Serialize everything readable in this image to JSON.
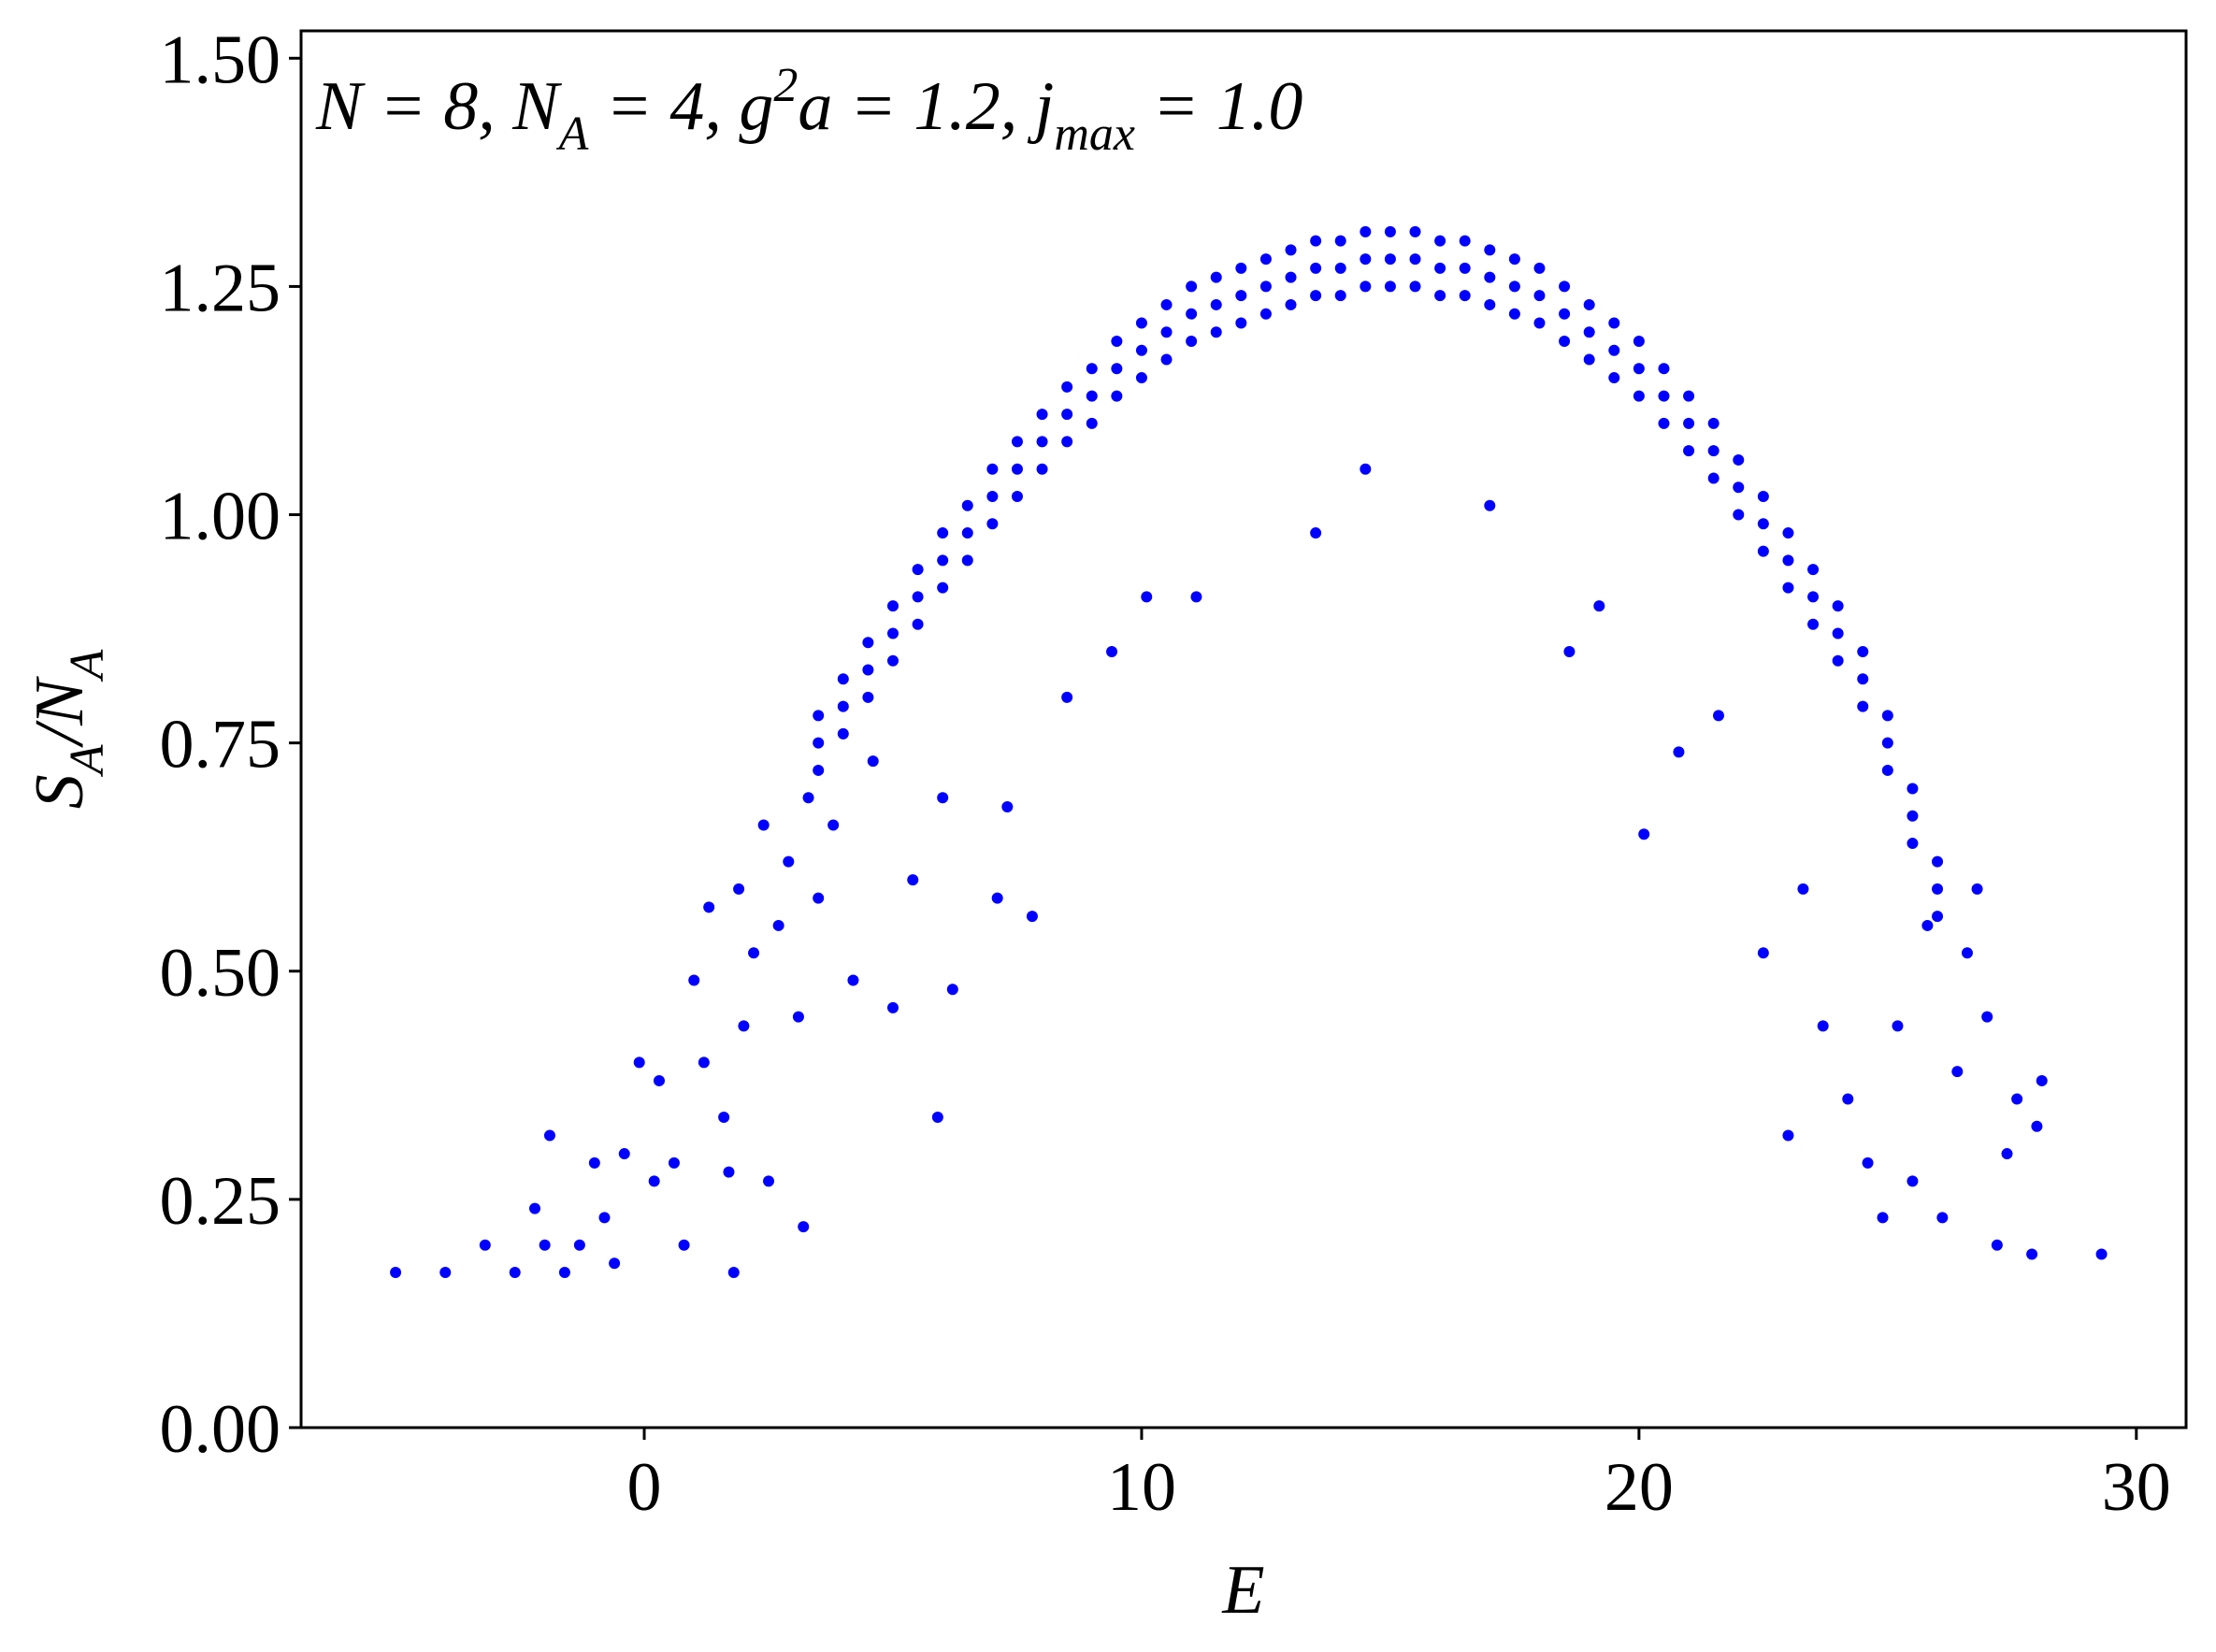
{
  "chart_data": {
    "type": "scatter",
    "annotation": [
      {
        "text": "N = 8, N"
      },
      {
        "text": "A",
        "shift": "sub"
      },
      {
        "text": " = 4, g"
      },
      {
        "text": "2",
        "shift": "super"
      },
      {
        "text": "a = 1.2, j"
      },
      {
        "text": "max",
        "shift": "sub"
      },
      {
        "text": " = 1.0"
      }
    ],
    "xlabel": [
      {
        "text": "E"
      }
    ],
    "ylabel": [
      {
        "text": "S"
      },
      {
        "text": "A",
        "shift": "sub"
      },
      {
        "text": "/N"
      },
      {
        "text": "A",
        "shift": "sub"
      }
    ],
    "xlim": [
      -6.9,
      31.0
    ],
    "ylim": [
      0,
      1.53
    ],
    "xticks": [
      0,
      10,
      20,
      30
    ],
    "yticks": [
      {
        "value": 0,
        "label": "0.00"
      },
      {
        "value": 0.25,
        "label": "0.25"
      },
      {
        "value": 0.5,
        "label": "0.50"
      },
      {
        "value": 0.75,
        "label": "0.75"
      },
      {
        "value": 1.0,
        "label": "1.00"
      },
      {
        "value": 1.25,
        "label": "1.25"
      },
      {
        "value": 1.5,
        "label": "1.50"
      }
    ],
    "color": "#0000ff",
    "x": [
      3.5,
      3.5,
      3.5,
      4,
      4,
      4,
      4.5,
      4.5,
      4.5,
      5,
      5,
      5,
      5.5,
      5.5,
      5.5,
      6,
      6,
      6,
      6.5,
      6.5,
      6.5,
      7,
      7,
      7,
      7.5,
      7.5,
      7.5,
      8,
      8,
      8,
      8.5,
      8.5,
      8.5,
      9,
      9,
      9,
      9.5,
      9.5,
      9.5,
      10,
      10,
      10,
      10.5,
      10.5,
      10.5,
      11,
      11,
      11,
      11.5,
      11.5,
      11.5,
      12,
      12,
      12,
      12.5,
      12.5,
      12.5,
      13,
      13,
      13,
      13.5,
      13.5,
      13.5,
      14,
      14,
      14,
      14.5,
      14.5,
      14.5,
      15,
      15,
      15,
      15.5,
      15.5,
      15.5,
      16,
      16,
      16,
      16.5,
      16.5,
      16.5,
      17,
      17,
      17,
      17.5,
      17.5,
      17.5,
      18,
      18,
      18,
      18.5,
      18.5,
      18.5,
      19,
      19,
      19,
      19.5,
      19.5,
      19.5,
      20,
      20,
      20,
      20.5,
      20.5,
      20.5,
      21,
      21,
      21,
      21.5,
      21.5,
      21.5,
      22,
      22,
      22,
      22.5,
      22.5,
      22.5,
      23,
      23,
      23,
      23.5,
      23.5,
      23.5,
      24,
      24,
      24,
      24.5,
      24.5,
      24.5,
      25,
      25,
      25,
      25.5,
      25.5,
      25.5,
      26,
      26,
      26,
      -5,
      -4,
      -3.2,
      -2.6,
      -2.2,
      -2,
      -1.9,
      -1.6,
      -1.3,
      -1.0,
      -0.8,
      -0.6,
      -0.4,
      -0.1,
      0.2,
      0.3,
      0.6,
      0.8,
      1.0,
      1.2,
      1.3,
      1.6,
      1.7,
      1.8,
      1.9,
      2.0,
      2.2,
      2.4,
      2.5,
      2.7,
      2.9,
      3.1,
      3.2,
      3.3,
      3.5,
      3.8,
      4.2,
      4.6,
      5.0,
      5.4,
      5.9,
      6.0,
      6.2,
      7.1,
      7.3,
      7.8,
      8.5,
      9.4,
      10.1,
      11.1,
      13.5,
      14.5,
      17.0,
      18.6,
      19.2,
      20.1,
      20.8,
      21.6,
      22.5,
      23.0,
      23.3,
      23.7,
      24.2,
      24.6,
      24.9,
      25.2,
      25.5,
      26.1,
      26.4,
      26.6,
      27.0,
      27.2,
      27.6,
      27.9,
      28.1,
      29.3,
      25.8,
      26.8,
      27.4,
      28.0
    ],
    "y": [
      0.78,
      0.75,
      0.72,
      0.82,
      0.79,
      0.76,
      0.86,
      0.83,
      0.8,
      0.9,
      0.87,
      0.84,
      0.94,
      0.91,
      0.88,
      0.98,
      0.95,
      0.92,
      1.01,
      0.98,
      0.95,
      1.05,
      1.02,
      0.99,
      1.08,
      1.05,
      1.02,
      1.11,
      1.08,
      1.05,
      1.14,
      1.11,
      1.08,
      1.16,
      1.13,
      1.1,
      1.19,
      1.16,
      1.13,
      1.21,
      1.18,
      1.15,
      1.23,
      1.2,
      1.17,
      1.25,
      1.22,
      1.19,
      1.26,
      1.23,
      1.2,
      1.27,
      1.24,
      1.21,
      1.28,
      1.25,
      1.22,
      1.29,
      1.26,
      1.23,
      1.3,
      1.27,
      1.24,
      1.3,
      1.27,
      1.24,
      1.31,
      1.28,
      1.25,
      1.31,
      1.28,
      1.25,
      1.31,
      1.28,
      1.25,
      1.3,
      1.27,
      1.24,
      1.3,
      1.27,
      1.24,
      1.29,
      1.26,
      1.23,
      1.28,
      1.25,
      1.22,
      1.27,
      1.24,
      1.21,
      1.25,
      1.22,
      1.19,
      1.23,
      1.2,
      1.17,
      1.21,
      1.18,
      1.15,
      1.19,
      1.16,
      1.13,
      1.16,
      1.13,
      1.1,
      1.13,
      1.1,
      1.07,
      1.1,
      1.07,
      1.04,
      1.06,
      1.03,
      1.0,
      1.02,
      0.99,
      0.96,
      0.98,
      0.95,
      0.92,
      0.94,
      0.91,
      0.88,
      0.9,
      0.87,
      0.84,
      0.85,
      0.82,
      0.79,
      0.78,
      0.75,
      0.72,
      0.7,
      0.67,
      0.64,
      0.62,
      0.59,
      0.56,
      0.17,
      0.17,
      0.2,
      0.17,
      0.24,
      0.2,
      0.32,
      0.17,
      0.2,
      0.29,
      0.23,
      0.18,
      0.3,
      0.4,
      0.27,
      0.38,
      0.29,
      0.2,
      0.49,
      0.4,
      0.57,
      0.34,
      0.28,
      0.17,
      0.59,
      0.44,
      0.52,
      0.66,
      0.27,
      0.55,
      0.62,
      0.45,
      0.22,
      0.69,
      0.58,
      0.66,
      0.49,
      0.73,
      0.46,
      0.6,
      0.34,
      0.69,
      0.48,
      0.58,
      0.68,
      0.56,
      0.8,
      0.85,
      0.91,
      0.91,
      0.98,
      1.05,
      1.01,
      0.85,
      0.9,
      0.65,
      0.74,
      0.78,
      0.52,
      0.32,
      0.59,
      0.44,
      0.36,
      0.29,
      0.23,
      0.44,
      0.27,
      0.23,
      0.39,
      0.52,
      0.45,
      0.2,
      0.36,
      0.19,
      0.38,
      0.19,
      0.55,
      0.59,
      0.3,
      0.33
    ]
  }
}
